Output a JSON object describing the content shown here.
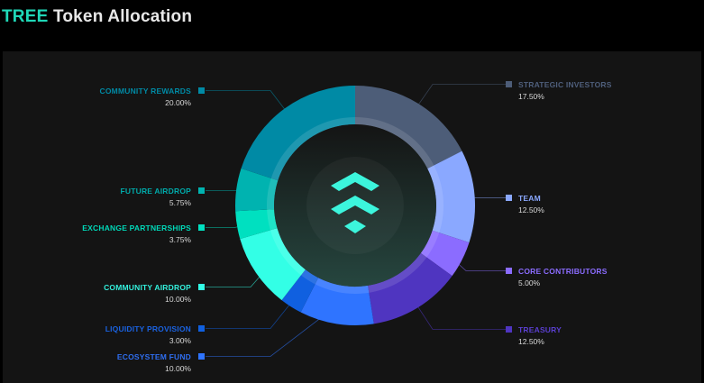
{
  "header": {
    "title_accent": "TREE",
    "title_rest": "Token Allocation"
  },
  "chart_data": {
    "type": "pie",
    "variant": "donut",
    "title": "TREE Token Allocation",
    "unit": "%",
    "slices": [
      {
        "name": "STRATEGIC INVESTORS",
        "value": 17.5,
        "label": "17.50%",
        "color": "#4d5d78",
        "label_color": "#4f5f7c"
      },
      {
        "name": "TEAM",
        "value": 12.5,
        "label": "12.50%",
        "color": "#8aa8ff",
        "label_color": "#8aa8ff"
      },
      {
        "name": "CORE CONTRIBUTORS",
        "value": 5.0,
        "label": "5.00%",
        "color": "#8b6cff",
        "label_color": "#8b6cff"
      },
      {
        "name": "TREASURY",
        "value": 12.5,
        "label": "12.50%",
        "color": "#4f35c0",
        "label_color": "#5a3fd0"
      },
      {
        "name": "ECOSYSTEM FUND",
        "value": 10.0,
        "label": "10.00%",
        "color": "#2f74ff",
        "label_color": "#2f6ef0"
      },
      {
        "name": "LIQUIDITY PROVISION",
        "value": 3.0,
        "label": "3.00%",
        "color": "#1060e0",
        "label_color": "#1a62e0"
      },
      {
        "name": "COMMUNITY AIRDROP",
        "value": 10.0,
        "label": "10.00%",
        "color": "#33ffe6",
        "label_color": "#33f0dc"
      },
      {
        "name": "EXCHANGE PARTNERSHIPS",
        "value": 3.75,
        "label": "3.75%",
        "color": "#00e0c0",
        "label_color": "#00d8b8"
      },
      {
        "name": "FUTURE AIRDROP",
        "value": 5.75,
        "label": "5.75%",
        "color": "#00b3b0",
        "label_color": "#00aaaa"
      },
      {
        "name": "COMMUNITY REWARDS",
        "value": 20.0,
        "label": "20.00%",
        "color": "#008aa5",
        "label_color": "#008aa5"
      }
    ],
    "legend": "labels around donut with leader lines",
    "center_icon": "tree-logo-icon"
  }
}
